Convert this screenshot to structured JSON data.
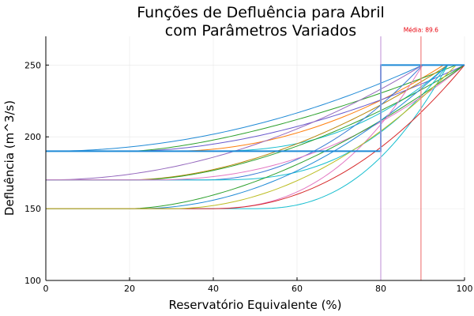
{
  "chart_data": {
    "type": "line",
    "title_lines": [
      "Funções de Defluência para Abril",
      "com Parâmetros Variados"
    ],
    "xlabel": "Reservatório Equivalente (%)",
    "ylabel": "Defluência (m^3/s)",
    "xlim": [
      0,
      100
    ],
    "ylim": [
      100,
      270
    ],
    "xticks": [
      0,
      20,
      40,
      60,
      80,
      100
    ],
    "yticks": [
      100,
      150,
      200,
      250
    ],
    "grid": true,
    "legend": "none",
    "annotation": {
      "text": "Média: 89.6",
      "x": 89.6,
      "y": 273
    },
    "vlines": [
      {
        "x": 80,
        "color": "#c9a0dc"
      },
      {
        "x": 89.6,
        "color": "#f08080"
      }
    ],
    "step": {
      "color": "#1f8ad6",
      "points": [
        [
          0,
          190
        ],
        [
          80,
          190
        ],
        [
          80,
          250
        ],
        [
          100,
          250
        ]
      ]
    },
    "series": [
      {
        "color": "#1f8ad6",
        "flat_y": 190,
        "x_start": 0,
        "x_end": 90,
        "max_y": 250,
        "power": 2.0
      },
      {
        "color": "#ff7f0e",
        "flat_y": 190,
        "x_start": 30,
        "x_end": 95,
        "max_y": 250,
        "power": 2.0
      },
      {
        "color": "#2ca02c",
        "flat_y": 190,
        "x_start": 20,
        "x_end": 98,
        "max_y": 250,
        "power": 1.5
      },
      {
        "color": "#6a5acd",
        "flat_y": 190,
        "x_start": 20,
        "x_end": 100,
        "max_y": 250,
        "power": 1.8
      },
      {
        "color": "#17becf",
        "flat_y": 190,
        "x_start": 38,
        "x_end": 96,
        "max_y": 250,
        "power": 2.5
      },
      {
        "color": "#9467bd",
        "flat_y": 170,
        "x_start": 0,
        "x_end": 90,
        "max_y": 250,
        "power": 2.0
      },
      {
        "color": "#b8860b",
        "flat_y": 170,
        "x_start": 20,
        "x_end": 96,
        "max_y": 250,
        "power": 1.8
      },
      {
        "color": "#2ca02c",
        "flat_y": 170,
        "x_start": 22,
        "x_end": 100,
        "max_y": 250,
        "power": 1.7
      },
      {
        "color": "#3a7bd5",
        "flat_y": 170,
        "x_start": 38,
        "x_end": 90,
        "max_y": 250,
        "power": 2.0
      },
      {
        "color": "#17becf",
        "flat_y": 170,
        "x_start": 40,
        "x_end": 96,
        "max_y": 250,
        "power": 2.6
      },
      {
        "color": "#e377c2",
        "flat_y": 170,
        "x_start": 25,
        "x_end": 100,
        "max_y": 250,
        "power": 2.2
      },
      {
        "color": "#2ca02c",
        "flat_y": 150,
        "x_start": 20,
        "x_end": 100,
        "max_y": 250,
        "power": 1.7
      },
      {
        "color": "#1f8ad6",
        "flat_y": 150,
        "x_start": 22,
        "x_end": 96,
        "max_y": 250,
        "power": 2.0
      },
      {
        "color": "#e377c2",
        "flat_y": 150,
        "x_start": 38,
        "x_end": 90,
        "max_y": 250,
        "power": 2.5
      },
      {
        "color": "#17becf",
        "flat_y": 150,
        "x_start": 50,
        "x_end": 96,
        "max_y": 250,
        "power": 2.4
      },
      {
        "color": "#d62728",
        "flat_y": 150,
        "x_start": 40,
        "x_end": 100,
        "max_y": 250,
        "power": 2.1
      },
      {
        "color": "#bcbd22",
        "flat_y": 150,
        "x_start": 30,
        "x_end": 98,
        "max_y": 250,
        "power": 2.0
      }
    ]
  }
}
